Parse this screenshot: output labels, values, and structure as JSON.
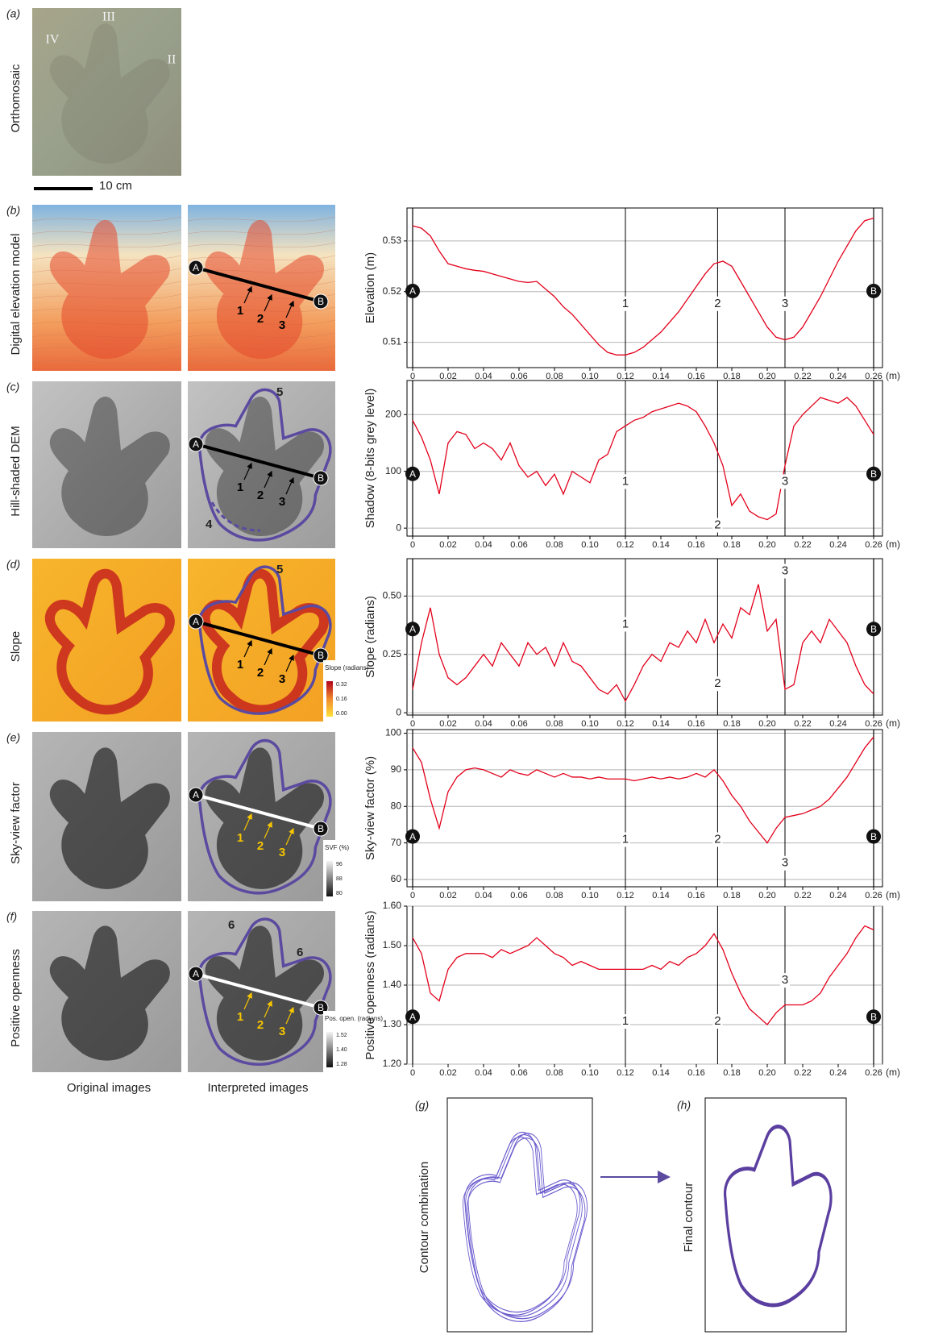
{
  "figure": {
    "panels": [
      {
        "letter": "(a)",
        "label": "Orthomosaic"
      },
      {
        "letter": "(b)",
        "label": "Digital elevation model"
      },
      {
        "letter": "(c)",
        "label": "Hill-shaded DEM"
      },
      {
        "letter": "(d)",
        "label": "Slope"
      },
      {
        "letter": "(e)",
        "label": "Sky-view factor"
      },
      {
        "letter": "(f)",
        "label": "Positive openness"
      }
    ],
    "scale_bar": "10 cm",
    "digit_labels": [
      "III",
      "IV",
      "II"
    ],
    "contour_labels": [
      "4",
      "5",
      "6"
    ],
    "colorbars": [
      {
        "title": "Slope (radians)",
        "ticks": [
          "0.32",
          "0.16",
          "0.00"
        ]
      },
      {
        "title": "SVF (%)",
        "ticks": [
          "96",
          "88",
          "80"
        ]
      },
      {
        "title": "Pos. open. (radians)",
        "ticks": [
          "1.52",
          "1.40",
          "1.28"
        ]
      }
    ],
    "column_captions": [
      "Original images",
      "Interpreted images"
    ],
    "combination": {
      "letter": "(g)",
      "label": "Contour combination"
    },
    "final": {
      "letter": "(h)",
      "label": "Final contour"
    }
  },
  "chart_data": [
    {
      "type": "line",
      "y_label": "Elevation (m)",
      "x_unit": "(m)",
      "end_labels": [
        "A",
        "B"
      ],
      "profile_points": [
        {
          "label": "1",
          "x": 0.12
        },
        {
          "label": "2",
          "x": 0.172
        },
        {
          "label": "3",
          "x": 0.21
        }
      ],
      "x": [
        0,
        0.005,
        0.01,
        0.015,
        0.02,
        0.025,
        0.03,
        0.035,
        0.04,
        0.045,
        0.05,
        0.055,
        0.06,
        0.065,
        0.07,
        0.075,
        0.08,
        0.085,
        0.09,
        0.095,
        0.1,
        0.105,
        0.11,
        0.115,
        0.12,
        0.125,
        0.13,
        0.135,
        0.14,
        0.145,
        0.15,
        0.155,
        0.16,
        0.165,
        0.17,
        0.175,
        0.18,
        0.185,
        0.19,
        0.195,
        0.2,
        0.205,
        0.21,
        0.215,
        0.22,
        0.225,
        0.23,
        0.235,
        0.24,
        0.245,
        0.25,
        0.255,
        0.26
      ],
      "series": [
        {
          "color": "#e3001b",
          "values": [
            0.533,
            0.5325,
            0.531,
            0.528,
            0.5255,
            0.525,
            0.5245,
            0.5242,
            0.524,
            0.5235,
            0.523,
            0.5225,
            0.522,
            0.5218,
            0.522,
            0.5205,
            0.519,
            0.517,
            0.5155,
            0.5135,
            0.5115,
            0.5095,
            0.508,
            0.5075,
            0.5075,
            0.508,
            0.509,
            0.5105,
            0.512,
            0.514,
            0.516,
            0.5185,
            0.521,
            0.5235,
            0.5255,
            0.526,
            0.525,
            0.522,
            0.519,
            0.516,
            0.513,
            0.511,
            0.5105,
            0.511,
            0.513,
            0.516,
            0.519,
            0.5225,
            0.526,
            0.529,
            0.532,
            0.534,
            0.5345
          ]
        }
      ],
      "xlim": [
        0,
        0.26
      ],
      "ylim": [
        0.505,
        0.5365
      ],
      "yticks": [
        0.51,
        0.52,
        0.53
      ],
      "xticks": [
        0,
        0.02,
        0.04,
        0.06,
        0.08,
        {
          "value": 0.1,
          "label": "0.10"
        },
        0.12,
        0.14,
        0.16,
        0.18,
        {
          "value": 0.2,
          "label": "0.20"
        },
        0.22,
        0.24,
        0.26
      ],
      "grid": true
    },
    {
      "type": "line",
      "y_label": "Shadow (8-bits grey level)",
      "x_unit": "(m)",
      "end_labels": [
        "A",
        "B"
      ],
      "profile_points": [
        {
          "label": "1",
          "x": 0.12
        },
        {
          "label": "2",
          "x": 0.172
        },
        {
          "label": "3",
          "x": 0.21
        }
      ],
      "x": [
        0,
        0.005,
        0.01,
        0.015,
        0.02,
        0.025,
        0.03,
        0.035,
        0.04,
        0.045,
        0.05,
        0.055,
        0.06,
        0.065,
        0.07,
        0.075,
        0.08,
        0.085,
        0.09,
        0.095,
        0.1,
        0.105,
        0.11,
        0.115,
        0.12,
        0.125,
        0.13,
        0.135,
        0.14,
        0.145,
        0.15,
        0.155,
        0.16,
        0.165,
        0.17,
        0.175,
        0.18,
        0.185,
        0.19,
        0.195,
        0.2,
        0.205,
        0.21,
        0.215,
        0.22,
        0.225,
        0.23,
        0.235,
        0.24,
        0.245,
        0.25,
        0.255,
        0.26
      ],
      "series": [
        {
          "color": "#e3001b",
          "values": [
            190,
            160,
            120,
            60,
            150,
            170,
            165,
            140,
            150,
            140,
            120,
            150,
            110,
            90,
            100,
            75,
            95,
            60,
            100,
            90,
            80,
            120,
            130,
            170,
            180,
            190,
            195,
            205,
            210,
            215,
            220,
            215,
            205,
            180,
            150,
            110,
            40,
            60,
            30,
            20,
            15,
            25,
            110,
            180,
            200,
            215,
            230,
            225,
            220,
            230,
            215,
            190,
            165
          ]
        }
      ],
      "xlim": [
        0,
        0.26
      ],
      "ylim": [
        -14,
        260
      ],
      "yticks": [
        0,
        100,
        200
      ],
      "xticks": [
        0,
        0.02,
        0.04,
        0.06,
        0.08,
        {
          "value": 0.1,
          "label": "0.10"
        },
        0.12,
        0.14,
        0.16,
        0.18,
        {
          "value": 0.2,
          "label": "0.20"
        },
        0.22,
        0.24,
        0.26
      ],
      "grid": true
    },
    {
      "type": "line",
      "y_label": "Slope (radians)",
      "x_unit": "(m)",
      "end_labels": [
        "A",
        "B"
      ],
      "profile_points": [
        {
          "label": "1",
          "x": 0.12
        },
        {
          "label": "2",
          "x": 0.172
        },
        {
          "label": "3",
          "x": 0.21
        }
      ],
      "x": [
        0,
        0.005,
        0.01,
        0.015,
        0.02,
        0.025,
        0.03,
        0.035,
        0.04,
        0.045,
        0.05,
        0.055,
        0.06,
        0.065,
        0.07,
        0.075,
        0.08,
        0.085,
        0.09,
        0.095,
        0.1,
        0.105,
        0.11,
        0.115,
        0.12,
        0.125,
        0.13,
        0.135,
        0.14,
        0.145,
        0.15,
        0.155,
        0.16,
        0.165,
        0.17,
        0.175,
        0.18,
        0.185,
        0.19,
        0.195,
        0.2,
        0.205,
        0.21,
        0.215,
        0.22,
        0.225,
        0.23,
        0.235,
        0.24,
        0.245,
        0.25,
        0.255,
        0.26
      ],
      "series": [
        {
          "color": "#e3001b",
          "values": [
            0.1,
            0.3,
            0.45,
            0.25,
            0.15,
            0.12,
            0.15,
            0.2,
            0.25,
            0.2,
            0.3,
            0.25,
            0.2,
            0.3,
            0.25,
            0.28,
            0.2,
            0.3,
            0.22,
            0.2,
            0.15,
            0.1,
            0.08,
            0.12,
            0.05,
            0.12,
            0.2,
            0.25,
            0.22,
            0.3,
            0.28,
            0.35,
            0.3,
            0.4,
            0.3,
            0.38,
            0.32,
            0.45,
            0.42,
            0.55,
            0.35,
            0.4,
            0.1,
            0.12,
            0.3,
            0.35,
            0.3,
            0.4,
            0.35,
            0.3,
            0.2,
            0.12,
            0.08
          ]
        }
      ],
      "xlim": [
        0,
        0.26
      ],
      "ylim": [
        -0.01,
        0.66
      ],
      "yticks": [
        0,
        0.25,
        {
          "value": 0.5,
          "label": "0.50"
        }
      ],
      "xticks": [
        0,
        0.02,
        0.04,
        0.06,
        0.08,
        {
          "value": 0.1,
          "label": "0.10"
        },
        0.12,
        0.14,
        0.16,
        0.18,
        {
          "value": 0.2,
          "label": "0.20"
        },
        0.22,
        0.24,
        0.26
      ],
      "grid": true
    },
    {
      "type": "line",
      "y_label": "Sky-view factor (%)",
      "x_unit": "(m)",
      "end_labels": [
        "A",
        "B"
      ],
      "profile_points": [
        {
          "label": "1",
          "x": 0.12
        },
        {
          "label": "2",
          "x": 0.172
        },
        {
          "label": "3",
          "x": 0.21
        }
      ],
      "x": [
        0,
        0.005,
        0.01,
        0.015,
        0.02,
        0.025,
        0.03,
        0.035,
        0.04,
        0.045,
        0.05,
        0.055,
        0.06,
        0.065,
        0.07,
        0.075,
        0.08,
        0.085,
        0.09,
        0.095,
        0.1,
        0.105,
        0.11,
        0.115,
        0.12,
        0.125,
        0.13,
        0.135,
        0.14,
        0.145,
        0.15,
        0.155,
        0.16,
        0.165,
        0.17,
        0.175,
        0.18,
        0.185,
        0.19,
        0.195,
        0.2,
        0.205,
        0.21,
        0.215,
        0.22,
        0.225,
        0.23,
        0.235,
        0.24,
        0.245,
        0.25,
        0.255,
        0.26
      ],
      "series": [
        {
          "color": "#e3001b",
          "values": [
            96,
            92,
            82,
            74,
            84,
            88,
            90,
            90.5,
            90,
            89,
            88,
            90,
            89,
            88.5,
            90,
            89,
            88,
            89,
            88,
            88,
            87.5,
            88,
            87.5,
            87.5,
            87.5,
            87,
            87.5,
            88,
            87.5,
            88,
            87.5,
            88,
            89,
            88,
            90,
            87,
            83,
            80,
            76,
            73,
            70,
            74,
            77,
            77.5,
            78,
            79,
            80,
            82,
            85,
            88,
            92,
            96,
            99
          ]
        }
      ],
      "xlim": [
        0,
        0.26
      ],
      "ylim": [
        58,
        101
      ],
      "yticks": [
        60,
        70,
        80,
        90,
        100
      ],
      "xticks": [
        0,
        0.02,
        0.04,
        0.06,
        0.08,
        {
          "value": 0.1,
          "label": "0.10"
        },
        0.12,
        0.14,
        0.16,
        0.18,
        {
          "value": 0.2,
          "label": "0.20"
        },
        0.22,
        0.24,
        0.26
      ],
      "grid": true
    },
    {
      "type": "line",
      "y_label": "Positive openness (radians)",
      "x_unit": "(m)",
      "end_labels": [
        "A",
        "B"
      ],
      "profile_points": [
        {
          "label": "1",
          "x": 0.12
        },
        {
          "label": "2",
          "x": 0.172
        },
        {
          "label": "3",
          "x": 0.21
        }
      ],
      "x": [
        0,
        0.005,
        0.01,
        0.015,
        0.02,
        0.025,
        0.03,
        0.035,
        0.04,
        0.045,
        0.05,
        0.055,
        0.06,
        0.065,
        0.07,
        0.075,
        0.08,
        0.085,
        0.09,
        0.095,
        0.1,
        0.105,
        0.11,
        0.115,
        0.12,
        0.125,
        0.13,
        0.135,
        0.14,
        0.145,
        0.15,
        0.155,
        0.16,
        0.165,
        0.17,
        0.175,
        0.18,
        0.185,
        0.19,
        0.195,
        0.2,
        0.205,
        0.21,
        0.215,
        0.22,
        0.225,
        0.23,
        0.235,
        0.24,
        0.245,
        0.25,
        0.255,
        0.26
      ],
      "series": [
        {
          "color": "#e3001b",
          "values": [
            1.52,
            1.48,
            1.38,
            1.36,
            1.44,
            1.47,
            1.48,
            1.48,
            1.48,
            1.47,
            1.49,
            1.48,
            1.49,
            1.5,
            1.52,
            1.5,
            1.48,
            1.47,
            1.45,
            1.46,
            1.45,
            1.44,
            1.44,
            1.44,
            1.44,
            1.44,
            1.44,
            1.45,
            1.44,
            1.46,
            1.45,
            1.47,
            1.48,
            1.5,
            1.53,
            1.49,
            1.43,
            1.38,
            1.34,
            1.32,
            1.3,
            1.33,
            1.35,
            1.35,
            1.35,
            1.36,
            1.38,
            1.42,
            1.45,
            1.48,
            1.52,
            1.55,
            1.54
          ]
        }
      ],
      "xlim": [
        0,
        0.26
      ],
      "ylim": [
        1.2,
        1.6
      ],
      "yticks": [
        {
          "value": 1.2,
          "label": "1.20"
        },
        {
          "value": 1.3,
          "label": "1.30"
        },
        {
          "value": 1.4,
          "label": "1.40"
        },
        {
          "value": 1.5,
          "label": "1.50"
        },
        {
          "value": 1.6,
          "label": "1.60"
        }
      ],
      "xticks": [
        0,
        0.02,
        0.04,
        0.06,
        0.08,
        {
          "value": 0.1,
          "label": "0.10"
        },
        0.12,
        0.14,
        0.16,
        0.18,
        {
          "value": 0.2,
          "label": "0.20"
        },
        0.22,
        0.24,
        0.26
      ],
      "grid": true
    }
  ]
}
